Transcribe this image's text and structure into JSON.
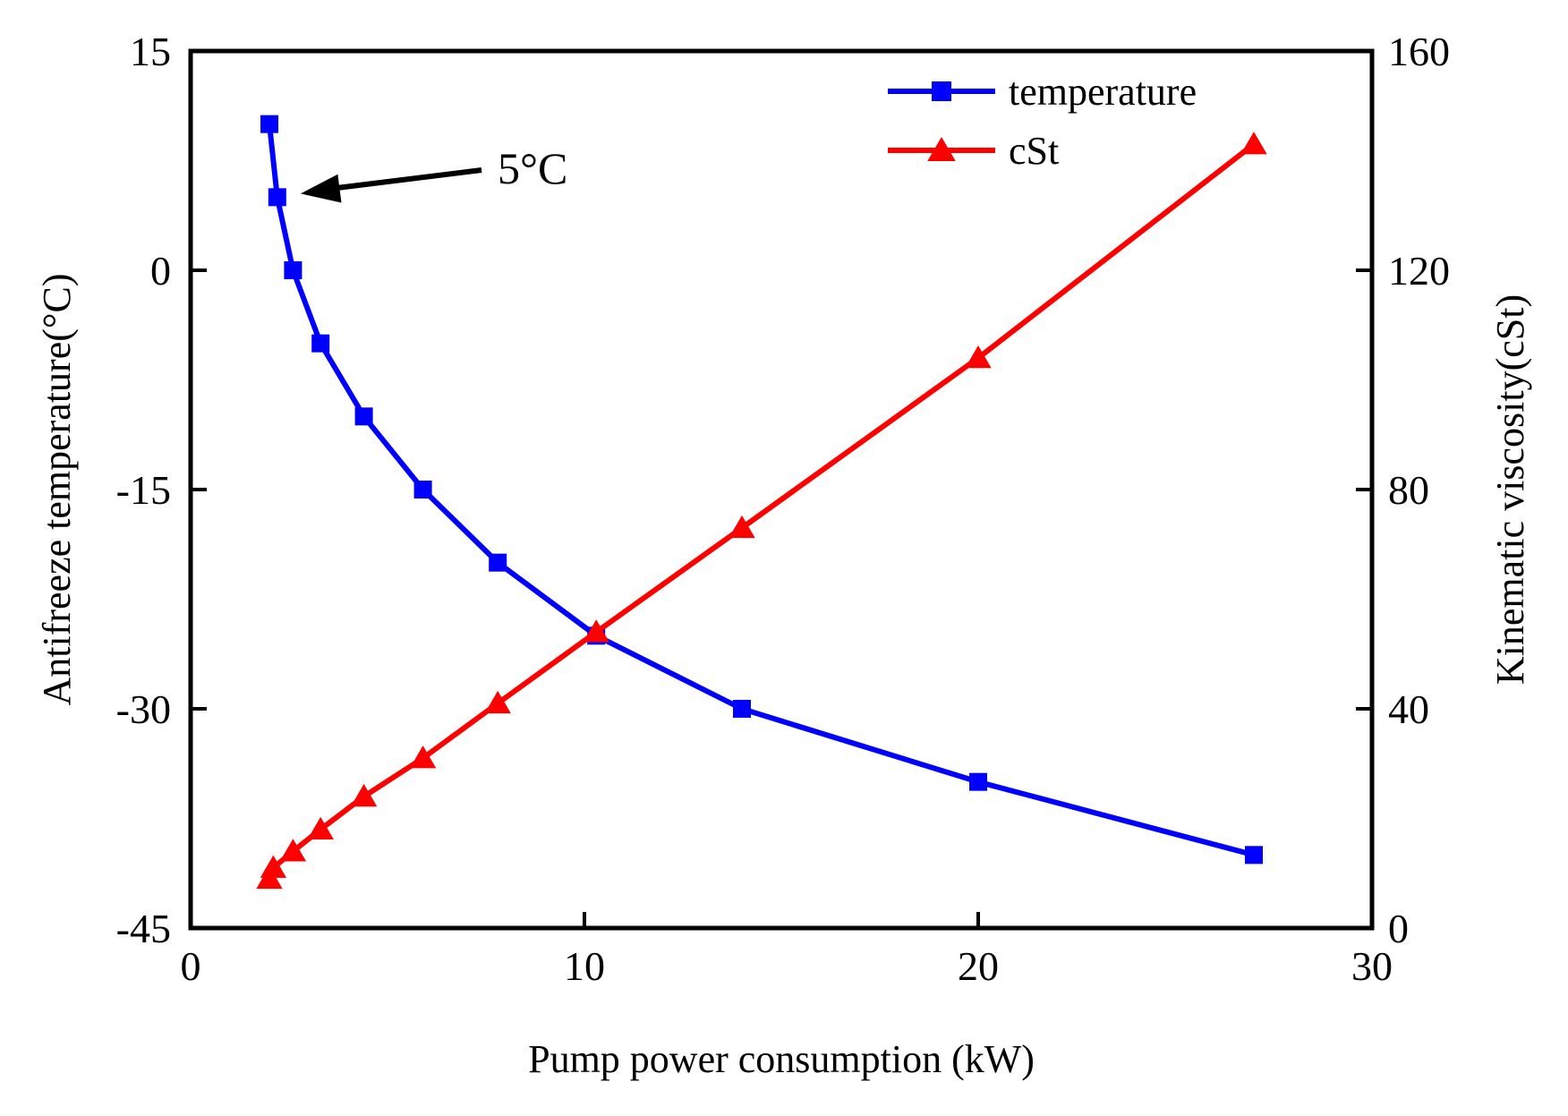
{
  "chart_data": {
    "type": "line",
    "title": "",
    "xlabel": "Pump power consumption (kW)",
    "ylabel_left": "Antifreeze temperature(°C)",
    "ylabel_right": "Kinematic viscosity(cSt)",
    "xlim": [
      0,
      30
    ],
    "ylim_left": [
      -45,
      15
    ],
    "ylim_right": [
      0,
      160
    ],
    "xticks": [
      "0",
      "10",
      "20",
      "30"
    ],
    "yticks_left": [
      "15",
      "0",
      "-15",
      "-30",
      "-45"
    ],
    "yticks_right": [
      "160",
      "120",
      "80",
      "40",
      "0"
    ],
    "grid": false,
    "legend_position": "top-right",
    "series": [
      {
        "name": "temperature",
        "axis": "left",
        "color": "#0000ff",
        "marker": "square",
        "x": [
          2.0,
          2.2,
          2.6,
          3.3,
          4.4,
          5.9,
          7.8,
          10.3,
          14.0,
          20.0,
          27.0
        ],
        "y": [
          10,
          5,
          0,
          -5,
          -10,
          -15,
          -20,
          -25,
          -30,
          -35,
          -40
        ]
      },
      {
        "name": "cSt",
        "axis": "right",
        "color": "#ff0000",
        "marker": "triangle",
        "x": [
          2.0,
          2.1,
          2.6,
          3.3,
          4.4,
          5.9,
          7.8,
          10.3,
          14.0,
          20.0,
          27.0
        ],
        "y": [
          9,
          11,
          14,
          18,
          24,
          31,
          41,
          54,
          73,
          104,
          143
        ]
      }
    ],
    "annotations": [
      {
        "text": "5°C",
        "target_series": "temperature",
        "target_x": 2.2,
        "target_y": 5
      }
    ]
  }
}
